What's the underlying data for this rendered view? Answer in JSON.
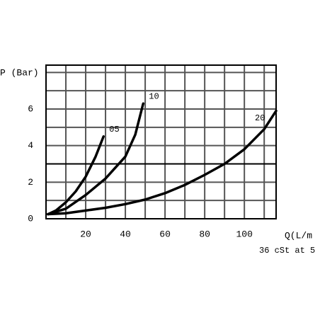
{
  "chart_data": {
    "type": "line",
    "ylabel": "P (Bar)",
    "xlabel": "Q(L/m",
    "note": "36 cSt at 5",
    "xlim": [
      0,
      116
    ],
    "ylim": [
      0,
      8.4
    ],
    "xticks": [
      20,
      40,
      60,
      80,
      100
    ],
    "yticks": [
      0,
      2,
      4,
      6
    ],
    "xminorticks": [
      10,
      30,
      50,
      70,
      90,
      110
    ],
    "yminorticks": [
      1,
      3,
      5,
      7,
      8
    ],
    "grid": true,
    "reference_line": 3,
    "series": [
      {
        "name": "05",
        "color": "#000000",
        "x": [
          1,
          5,
          10,
          15,
          20,
          25,
          29
        ],
        "values": [
          0.25,
          0.45,
          0.9,
          1.5,
          2.3,
          3.4,
          4.5
        ]
      },
      {
        "name": "10",
        "color": "#000000",
        "x": [
          1,
          10,
          20,
          30,
          40,
          45,
          49
        ],
        "values": [
          0.25,
          0.55,
          1.3,
          2.2,
          3.4,
          4.6,
          6.3
        ]
      },
      {
        "name": "20",
        "color": "#000000",
        "x": [
          1,
          10,
          20,
          30,
          40,
          50,
          60,
          70,
          80,
          90,
          100,
          110,
          116
        ],
        "values": [
          0.25,
          0.3,
          0.45,
          0.6,
          0.8,
          1.05,
          1.4,
          1.85,
          2.4,
          3.0,
          3.8,
          4.9,
          5.9
        ]
      }
    ]
  }
}
